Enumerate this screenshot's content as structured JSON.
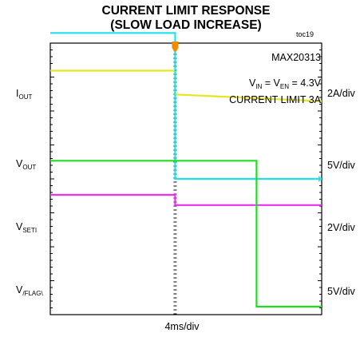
{
  "title_line1": "CURRENT LIMIT RESPONSE",
  "title_line2": "(SLOW LOAD INCREASE)",
  "figure_id": "toc19",
  "part_number": "MAX20313",
  "condition": {
    "vin": "V",
    "vin_sub": "IN",
    "mid": " = V",
    "ven_sub": "EN",
    "value": " = 4.3V",
    "line2": "CURRENT LIMIT 3A"
  },
  "time_scale": "4ms/div",
  "colors": {
    "iout": "#e6e620",
    "vout": "#20e0f0",
    "vset": "#ee30ee",
    "vflag": "#20dd20",
    "marker": "#f08a00"
  },
  "chart_data": {
    "type": "line",
    "x_unit": "ms",
    "xlim": [
      -18.4,
      21.6
    ],
    "x_per_div": 4,
    "grid": true,
    "series": [
      {
        "label": "I",
        "sub": "OUT",
        "scale": "2A/div",
        "color_key": "iout",
        "points": [
          [
            -18.4,
            3.0
          ],
          [
            0.0,
            3.0
          ],
          [
            0.0,
            2.3
          ],
          [
            21.6,
            2.1
          ]
        ]
      },
      {
        "label": "V",
        "sub": "OUT",
        "scale": "5V/div",
        "color_key": "vout",
        "points": [
          [
            -18.4,
            4.3
          ],
          [
            0.0,
            4.3
          ],
          [
            0.0,
            0.0
          ],
          [
            21.6,
            0.0
          ]
        ]
      },
      {
        "label": "V",
        "sub": "SETI",
        "scale": "2V/div",
        "color_key": "vset",
        "points": [
          [
            -18.4,
            1.2
          ],
          [
            0.0,
            1.2
          ],
          [
            0.0,
            0.9
          ],
          [
            21.6,
            0.9
          ]
        ]
      },
      {
        "label": "V",
        "sub": "/FLAG\\",
        "scale": "5V/div",
        "color_key": "vflag",
        "points": [
          [
            -18.4,
            4.3
          ],
          [
            12.0,
            4.3
          ],
          [
            12.0,
            0.0
          ],
          [
            21.6,
            0.0
          ]
        ]
      }
    ]
  }
}
